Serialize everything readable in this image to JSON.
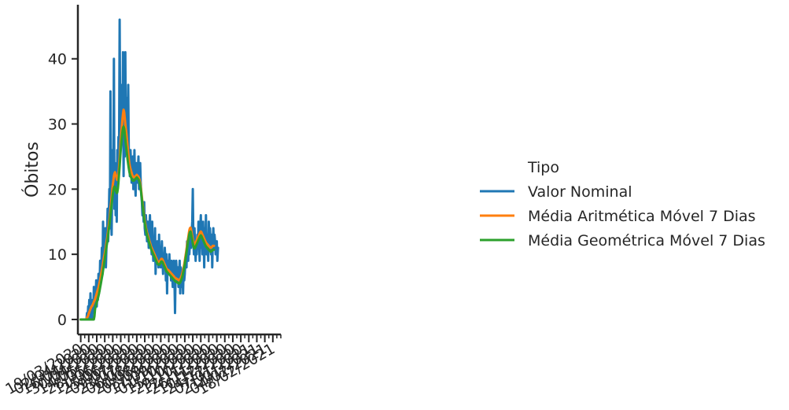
{
  "chart_data": {
    "type": "line",
    "title": "",
    "xlabel": "",
    "ylabel": "Óbitos",
    "ylim": [
      -2.3,
      48.3
    ],
    "yticks": [
      0,
      10,
      20,
      30,
      40
    ],
    "xlim": [
      "2020-03-14",
      "2021-03-04"
    ],
    "x_tick_labels": [
      "19/03/2020",
      "02/04/2020",
      "16/04/2020",
      "30/04/2020",
      "14/05/2020",
      "28/05/2020",
      "11/06/2020",
      "25/06/2020",
      "09/07/2020",
      "23/07/2020",
      "06/08/2020",
      "20/08/2020",
      "03/09/2020",
      "17/09/2020",
      "01/10/2020",
      "15/10/2020",
      "29/10/2020",
      "12/11/2020",
      "26/11/2020",
      "10/12/2020",
      "24/12/2020",
      "07/01/2021",
      "21/01/2021",
      "04/02/2021",
      "18/02/2021"
    ],
    "grid": false,
    "legend": {
      "position": "right",
      "title": "Tipo",
      "entries": [
        "Valor Nominal",
        "Média Aritmética Móvel 7 Dias",
        "Média Geométrica Móvel 7 Dias"
      ]
    },
    "series_note": "Daily values approximated from the figure; start 2020-03-19, one value per day.",
    "series": [
      {
        "name": "Valor Nominal",
        "color": "#1f77b4",
        "start_date": "2020-03-19",
        "values": [
          0,
          0,
          0,
          0,
          0,
          0,
          0,
          0,
          0,
          0,
          0,
          1,
          0,
          2,
          1,
          3,
          0,
          4,
          1,
          2,
          0,
          3,
          1,
          5,
          2,
          4,
          3,
          6,
          2,
          4,
          3,
          7,
          4,
          5,
          9,
          6,
          8,
          11,
          7,
          15,
          9,
          12,
          10,
          14,
          8,
          11,
          13,
          17,
          12,
          15,
          20,
          14,
          35,
          18,
          13,
          20,
          26,
          19,
          40,
          17,
          24,
          16,
          22,
          15,
          26,
          21,
          28,
          24,
          46,
          30,
          26,
          32,
          36,
          27,
          41,
          22,
          35,
          25,
          41,
          28,
          34,
          29,
          27,
          36,
          26,
          24,
          22,
          26,
          24,
          21,
          23,
          25,
          20,
          22,
          26,
          21,
          19,
          24,
          22,
          21,
          23,
          25,
          20,
          22,
          24,
          21,
          19,
          18,
          16,
          17,
          15,
          18,
          14,
          13,
          16,
          14,
          12,
          15,
          13,
          11,
          14,
          16,
          13,
          12,
          10,
          15,
          11,
          9,
          12,
          10,
          14,
          7,
          11,
          9,
          12,
          10,
          8,
          13,
          9,
          11,
          8,
          10,
          12,
          9,
          7,
          10,
          8,
          11,
          9,
          6,
          10,
          4,
          9,
          7,
          8,
          10,
          7,
          8,
          6,
          9,
          7,
          5,
          8,
          9,
          6,
          1,
          8,
          9,
          7,
          6,
          8,
          5,
          7,
          9,
          4,
          8,
          6,
          5,
          7,
          4,
          8,
          6,
          7,
          9,
          10,
          8,
          12,
          11,
          9,
          13,
          10,
          12,
          14,
          11,
          13,
          15,
          20,
          12,
          10,
          14,
          11,
          9,
          12,
          10,
          13,
          11,
          15,
          12,
          9,
          14,
          16,
          11,
          13,
          10,
          15,
          12,
          8,
          14,
          11,
          16,
          10,
          13,
          12,
          9,
          15,
          11,
          14,
          12,
          10,
          13,
          8,
          12,
          14,
          11,
          13,
          12,
          10,
          11,
          12,
          9,
          11
        ]
      },
      {
        "name": "Média Aritmética Móvel 7 Dias",
        "color": "#ff7f0e",
        "start_date": "2020-03-19",
        "values": [
          0,
          0,
          0,
          0,
          0,
          0,
          0,
          0,
          0,
          0,
          0.1,
          0.3,
          0.4,
          0.6,
          0.9,
          1.1,
          1.4,
          1.6,
          1.8,
          2.0,
          2.1,
          2.3,
          2.5,
          2.7,
          2.9,
          3.1,
          3.4,
          3.7,
          4.0,
          4.3,
          4.6,
          4.9,
          5.3,
          5.7,
          6.1,
          6.6,
          7.1,
          7.6,
          8.1,
          8.7,
          9.2,
          9.7,
          10.2,
          10.7,
          11.2,
          11.8,
          12.4,
          13.0,
          13.7,
          14.4,
          15.2,
          16.0,
          17.0,
          17.9,
          18.8,
          19.7,
          20.6,
          21.3,
          22.0,
          22.4,
          22.6,
          22.3,
          22.0,
          21.6,
          21.4,
          21.6,
          22.3,
          23.4,
          24.8,
          26.2,
          27.6,
          28.8,
          29.8,
          30.8,
          31.6,
          32.2,
          31.8,
          30.9,
          30.0,
          29.2,
          28.4,
          27.5,
          26.6,
          25.6,
          24.7,
          24.0,
          23.5,
          23.1,
          22.8,
          22.5,
          22.2,
          22.0,
          21.9,
          21.8,
          21.8,
          21.9,
          22.0,
          22.1,
          22.2,
          22.1,
          22.0,
          21.9,
          21.7,
          21.4,
          21.0,
          20.4,
          19.6,
          18.8,
          18.0,
          17.2,
          16.5,
          15.8,
          15.2,
          14.6,
          14.1,
          13.7,
          13.3,
          13.0,
          12.7,
          12.4,
          12.1,
          11.8,
          11.5,
          11.2,
          11.0,
          10.8,
          10.6,
          10.4,
          10.2,
          10.0,
          9.8,
          9.6,
          9.4,
          9.2,
          9.0,
          8.9,
          8.8,
          8.8,
          8.9,
          9.0,
          9.2,
          9.3,
          9.3,
          9.2,
          9.0,
          8.8,
          8.6,
          8.4,
          8.2,
          8.0,
          7.8,
          7.7,
          7.6,
          7.6,
          7.5,
          7.4,
          7.3,
          7.2,
          7.1,
          7.0,
          6.9,
          6.8,
          6.7,
          6.6,
          6.5,
          6.4,
          6.3,
          6.3,
          6.2,
          6.2,
          6.1,
          6.1,
          6.0,
          6.1,
          6.2,
          6.4,
          6.6,
          6.9,
          7.2,
          7.6,
          8.0,
          8.5,
          9.0,
          9.6,
          10.2,
          10.8,
          11.4,
          12.0,
          12.6,
          13.2,
          13.7,
          14.0,
          14.1,
          13.8,
          13.3,
          12.8,
          12.3,
          11.9,
          11.6,
          11.5,
          11.6,
          11.8,
          12.0,
          12.2,
          12.4,
          12.6,
          12.8,
          13.0,
          13.2,
          13.4,
          13.5,
          13.4,
          13.2,
          13.0,
          12.8,
          12.6,
          12.4,
          12.2,
          12.0,
          11.8,
          11.7,
          11.6,
          11.5,
          11.4,
          11.3,
          11.2,
          11.1,
          11.0,
          11.0,
          11.1,
          11.2,
          11.3,
          11.3,
          11.3
        ]
      },
      {
        "name": "Média Geométrica Móvel 7 Dias",
        "color": "#2ca02c",
        "start_date": "2020-03-19",
        "values": [
          0,
          0,
          0,
          0,
          0,
          0,
          0,
          0,
          0,
          0,
          0,
          0,
          0,
          0,
          0,
          0,
          0,
          0,
          0,
          0,
          0,
          0,
          0,
          0,
          0.5,
          1.5,
          2.0,
          2.3,
          2.6,
          2.9,
          3.2,
          3.6,
          4.0,
          4.4,
          4.9,
          5.4,
          5.9,
          6.4,
          6.9,
          7.5,
          8.1,
          8.7,
          9.3,
          9.9,
          10.5,
          11.1,
          11.7,
          12.3,
          13.0,
          13.7,
          14.4,
          15.2,
          16.0,
          16.8,
          17.6,
          18.4,
          19.2,
          19.8,
          20.2,
          20.4,
          20.3,
          20.0,
          19.6,
          19.4,
          19.5,
          20.1,
          21.0,
          22.2,
          23.5,
          24.8,
          26.0,
          27.1,
          28.1,
          28.9,
          29.4,
          29.6,
          29.3,
          28.6,
          27.7,
          26.9,
          26.1,
          25.3,
          24.5,
          23.8,
          23.2,
          22.7,
          22.3,
          22.0,
          21.8,
          21.6,
          21.4,
          21.3,
          21.3,
          21.3,
          21.4,
          21.5,
          21.6,
          21.7,
          21.8,
          21.7,
          21.6,
          21.5,
          21.3,
          21.0,
          20.6,
          20.0,
          19.2,
          18.4,
          17.6,
          16.8,
          16.1,
          15.4,
          14.8,
          14.2,
          13.7,
          13.3,
          12.9,
          12.6,
          12.3,
          12.0,
          11.7,
          11.4,
          11.1,
          10.8,
          10.6,
          10.4,
          10.2,
          10.0,
          9.8,
          9.6,
          9.4,
          9.2,
          9.0,
          8.8,
          8.6,
          8.5,
          8.4,
          8.4,
          8.5,
          8.6,
          8.8,
          8.9,
          8.9,
          8.8,
          8.6,
          8.4,
          8.2,
          8.0,
          7.8,
          7.6,
          7.4,
          7.3,
          7.2,
          7.1,
          7.0,
          6.9,
          6.8,
          6.7,
          6.6,
          6.5,
          6.4,
          6.3,
          6.2,
          6.1,
          6.0,
          5.9,
          5.8,
          5.8,
          5.7,
          5.7,
          5.6,
          5.6,
          5.5,
          5.6,
          5.7,
          5.9,
          6.1,
          6.4,
          6.7,
          7.1,
          7.5,
          8.0,
          8.5,
          9.1,
          9.7,
          10.3,
          10.9,
          11.5,
          12.1,
          12.6,
          13.1,
          13.4,
          13.5,
          13.2,
          12.7,
          12.2,
          11.7,
          11.3,
          11.0,
          10.9,
          11.0,
          11.2,
          11.4,
          11.6,
          11.8,
          12.0,
          12.2,
          12.4,
          12.6,
          12.8,
          12.9,
          12.8,
          12.6,
          12.4,
          12.2,
          12.0,
          11.8,
          11.6,
          11.4,
          11.2,
          11.1,
          11.0,
          10.9,
          10.8,
          10.7,
          10.6,
          10.5,
          10.4,
          10.4,
          10.5,
          10.6,
          10.7,
          10.7,
          10.7
        ]
      }
    ]
  }
}
